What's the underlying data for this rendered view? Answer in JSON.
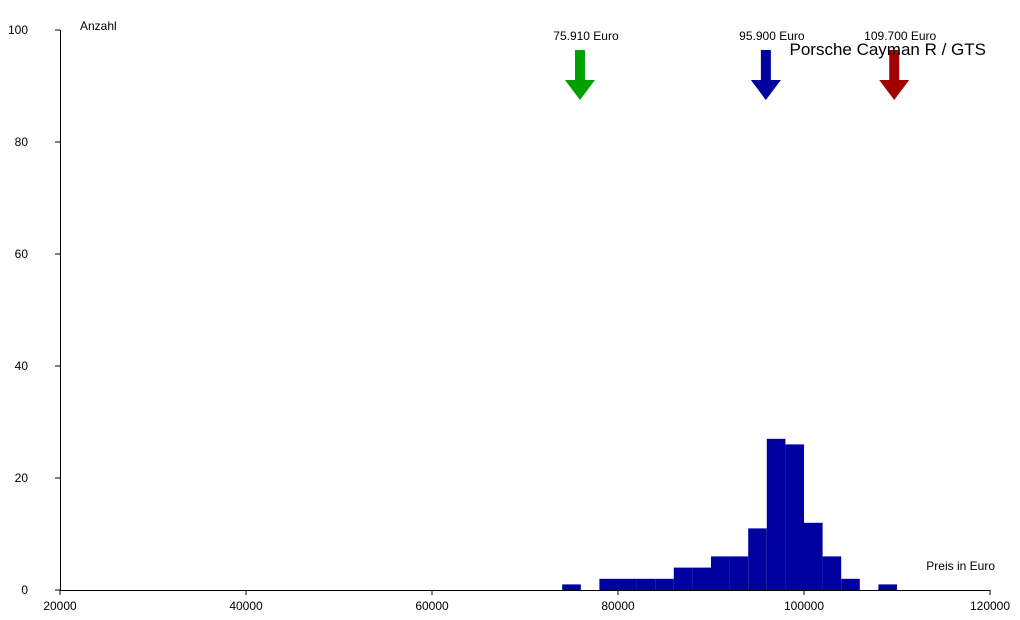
{
  "chart_data": {
    "type": "bar",
    "title": "Porsche Cayman R / GTS",
    "xlabel": "Preis in Euro",
    "ylabel": "Anzahl",
    "xlim": [
      20000,
      120000
    ],
    "ylim": [
      0,
      100
    ],
    "x_ticks": [
      "20000",
      "40000",
      "60000",
      "80000",
      "100000",
      "120000"
    ],
    "y_ticks": [
      "0",
      "20",
      "40",
      "60",
      "80",
      "100"
    ],
    "bar_color": "#0000a0",
    "grid": false,
    "bins": [
      {
        "start": 74000,
        "end": 76000,
        "count": 1
      },
      {
        "start": 78000,
        "end": 80000,
        "count": 2
      },
      {
        "start": 80000,
        "end": 82000,
        "count": 2
      },
      {
        "start": 82000,
        "end": 84000,
        "count": 2
      },
      {
        "start": 84000,
        "end": 86000,
        "count": 2
      },
      {
        "start": 86000,
        "end": 88000,
        "count": 4
      },
      {
        "start": 88000,
        "end": 90000,
        "count": 4
      },
      {
        "start": 90000,
        "end": 92000,
        "count": 6
      },
      {
        "start": 92000,
        "end": 94000,
        "count": 6
      },
      {
        "start": 94000,
        "end": 96000,
        "count": 11
      },
      {
        "start": 96000,
        "end": 98000,
        "count": 27
      },
      {
        "start": 98000,
        "end": 100000,
        "count": 26
      },
      {
        "start": 100000,
        "end": 102000,
        "count": 12
      },
      {
        "start": 102000,
        "end": 104000,
        "count": 6
      },
      {
        "start": 104000,
        "end": 106000,
        "count": 2
      },
      {
        "start": 108000,
        "end": 110000,
        "count": 1
      }
    ],
    "markers": [
      {
        "value": 75910,
        "label": "75.910 Euro",
        "color": "#00a000"
      },
      {
        "value": 95900,
        "label": "95.900 Euro",
        "color": "#0000a0"
      },
      {
        "value": 109700,
        "label": "109.700 Euro",
        "color": "#a00000"
      }
    ]
  }
}
